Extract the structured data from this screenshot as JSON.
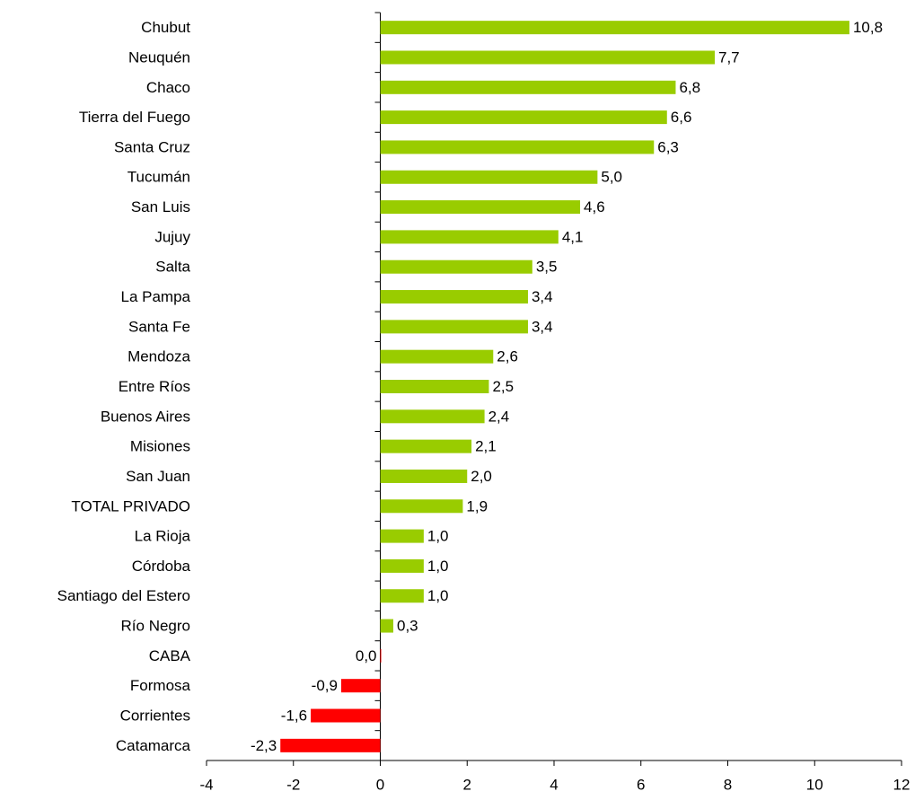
{
  "chart_data": {
    "type": "barh",
    "categories": [
      "Chubut",
      "Neuquén",
      "Chaco",
      "Tierra del Fuego",
      "Santa Cruz",
      "Tucumán",
      "San Luis",
      "Jujuy",
      "Salta",
      "La Pampa",
      "Santa Fe",
      "Mendoza",
      "Entre Ríos",
      "Buenos Aires",
      "Misiones",
      "San Juan",
      "TOTAL PRIVADO",
      "La Rioja",
      "Córdoba",
      "Santiago del Estero",
      "Río Negro",
      "CABA",
      "Formosa",
      "Corrientes",
      "Catamarca"
    ],
    "values": [
      10.8,
      7.7,
      6.8,
      6.6,
      6.3,
      5.0,
      4.6,
      4.1,
      3.5,
      3.4,
      3.4,
      2.6,
      2.5,
      2.4,
      2.1,
      2.0,
      1.9,
      1.0,
      1.0,
      1.0,
      0.3,
      0.0,
      -0.9,
      -1.6,
      -2.3
    ],
    "value_labels": [
      "10,8",
      "7,7",
      "6,8",
      "6,6",
      "6,3",
      "5,0",
      "4,6",
      "4,1",
      "3,5",
      "3,4",
      "3,4",
      "2,6",
      "2,5",
      "2,4",
      "2,1",
      "2,0",
      "1,9",
      "1,0",
      "1,0",
      "1,0",
      "0,3",
      "0,0",
      "-0,9",
      "-1,6",
      "-2,3"
    ],
    "colors": [
      "#99cc00",
      "#99cc00",
      "#99cc00",
      "#99cc00",
      "#99cc00",
      "#99cc00",
      "#99cc00",
      "#99cc00",
      "#99cc00",
      "#99cc00",
      "#99cc00",
      "#99cc00",
      "#99cc00",
      "#99cc00",
      "#99cc00",
      "#99cc00",
      "#99cc00",
      "#99cc00",
      "#99cc00",
      "#99cc00",
      "#99cc00",
      "#ff0000",
      "#ff0000",
      "#ff0000",
      "#ff0000"
    ],
    "xlim": [
      -4,
      12
    ],
    "xticks": [
      -4,
      -2,
      0,
      2,
      4,
      6,
      8,
      10,
      12
    ],
    "grid": false
  }
}
